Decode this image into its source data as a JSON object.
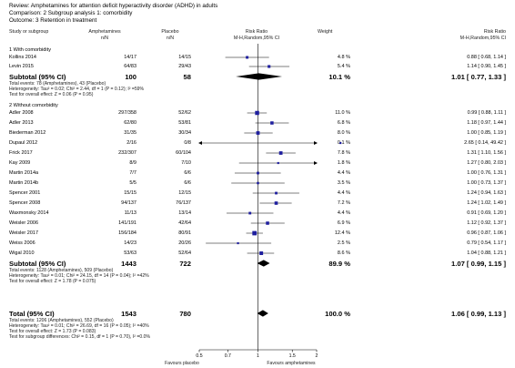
{
  "header": {
    "review": "Review:   Amphetamines for attention deficit hyperactivity disorder (ADHD) in adults",
    "comparison": "Comparison:   2 Subgroup analysis 1: comorbidity",
    "outcome": "Outcome:   3 Retention in treatment"
  },
  "columns": {
    "study": "Study or subgroup",
    "amph": "Amphetamines",
    "amph_sub": "n/N",
    "placebo": "Placebo",
    "placebo_sub": "n/N",
    "rr": "Risk Ratio",
    "rr_sub": "M-H,Random,95% CI",
    "weight": "Weight",
    "rr2": "Risk Ratio",
    "rr2_sub": "M-H,Random,95% CI"
  },
  "groups": [
    {
      "title": "1 With comorbidity",
      "rows": [
        {
          "study": "Kollins 2014",
          "amph": "14/17",
          "placebo": "14/15",
          "weight": "4.8 %",
          "ci_text": "0.88 [ 0.68, 1.14 ]",
          "rr": 0.88,
          "lo": 0.68,
          "hi": 1.14
        },
        {
          "study": "Levin 2015",
          "amph": "64/83",
          "placebo": "29/43",
          "weight": "5.4 %",
          "ci_text": "1.14 [ 0.90, 1.45 ]",
          "rr": 1.14,
          "lo": 0.9,
          "hi": 1.45
        }
      ],
      "subtotal": {
        "label": "Subtotal (95% CI)",
        "amph": "100",
        "placebo": "58",
        "weight": "10.1 %",
        "ci_text": "1.01 [ 0.77, 1.33 ]",
        "rr": 1.01,
        "lo": 0.77,
        "hi": 1.33
      },
      "notes": [
        "Total events: 78 (Amphetamines), 43 (Placebo)",
        "Heterogeneity: Tau² = 0.02; Chi² = 2.44, df = 1 (P = 0.12); I² =59%",
        "Test for overall effect: Z = 0.06 (P = 0.95)"
      ]
    },
    {
      "title": "2 Without comorbidity",
      "rows": [
        {
          "study": "Adler 2008",
          "amph": "297/358",
          "placebo": "52/62",
          "weight": "11.0 %",
          "ci_text": "0.99 [ 0.88, 1.11 ]",
          "rr": 0.99,
          "lo": 0.88,
          "hi": 1.11
        },
        {
          "study": "Adler 2013",
          "amph": "62/80",
          "placebo": "53/81",
          "weight": "6.8 %",
          "ci_text": "1.18 [ 0.97, 1.44 ]",
          "rr": 1.18,
          "lo": 0.97,
          "hi": 1.44
        },
        {
          "study": "Biederman 2012",
          "amph": "31/35",
          "placebo": "30/34",
          "weight": "8.0 %",
          "ci_text": "1.00 [ 0.85, 1.19 ]",
          "rr": 1.0,
          "lo": 0.85,
          "hi": 1.19
        },
        {
          "study": "Dupaul 2012",
          "amph": "2/16",
          "placebo": "0/8",
          "weight": "0.1 %",
          "ci_text": "2.65 [ 0.14, 49.42 ]",
          "rr": 2.65,
          "lo": 0.14,
          "hi": 49.42
        },
        {
          "study": "Frick 2017",
          "amph": "232/307",
          "placebo": "60/104",
          "weight": "7.8 %",
          "ci_text": "1.31 [ 1.10, 1.56 ]",
          "rr": 1.31,
          "lo": 1.1,
          "hi": 1.56
        },
        {
          "study": "Kay 2009",
          "amph": "8/9",
          "placebo": "7/10",
          "weight": "1.8 %",
          "ci_text": "1.27 [ 0.80, 2.03 ]",
          "rr": 1.27,
          "lo": 0.8,
          "hi": 2.03
        },
        {
          "study": "Martin 2014a",
          "amph": "7/7",
          "placebo": "6/6",
          "weight": "4.4 %",
          "ci_text": "1.00 [ 0.76, 1.31 ]",
          "rr": 1.0,
          "lo": 0.76,
          "hi": 1.31
        },
        {
          "study": "Martin 2014b",
          "amph": "5/5",
          "placebo": "6/6",
          "weight": "3.5 %",
          "ci_text": "1.00 [ 0.73, 1.37 ]",
          "rr": 1.0,
          "lo": 0.73,
          "hi": 1.37
        },
        {
          "study": "Spencer 2001",
          "amph": "15/15",
          "placebo": "12/15",
          "weight": "4.4 %",
          "ci_text": "1.24 [ 0.94, 1.63 ]",
          "rr": 1.24,
          "lo": 0.94,
          "hi": 1.63
        },
        {
          "study": "Spencer 2008",
          "amph": "94/137",
          "placebo": "76/137",
          "weight": "7.2 %",
          "ci_text": "1.24 [ 1.02, 1.49 ]",
          "rr": 1.24,
          "lo": 1.02,
          "hi": 1.49
        },
        {
          "study": "Waxmonsky 2014",
          "amph": "11/13",
          "placebo": "13/14",
          "weight": "4.4 %",
          "ci_text": "0.91 [ 0.69, 1.20 ]",
          "rr": 0.91,
          "lo": 0.69,
          "hi": 1.2
        },
        {
          "study": "Weisler 2006",
          "amph": "141/191",
          "placebo": "42/64",
          "weight": "6.9 %",
          "ci_text": "1.12 [ 0.92, 1.37 ]",
          "rr": 1.12,
          "lo": 0.92,
          "hi": 1.37
        },
        {
          "study": "Weisler 2017",
          "amph": "156/184",
          "placebo": "80/91",
          "weight": "12.4 %",
          "ci_text": "0.96 [ 0.87, 1.06 ]",
          "rr": 0.96,
          "lo": 0.87,
          "hi": 1.06
        },
        {
          "study": "Weiss 2006",
          "amph": "14/23",
          "placebo": "20/26",
          "weight": "2.5 %",
          "ci_text": "0.79 [ 0.54, 1.17 ]",
          "rr": 0.79,
          "lo": 0.54,
          "hi": 1.17
        },
        {
          "study": "Wigal 2010",
          "amph": "53/63",
          "placebo": "52/64",
          "weight": "8.6 %",
          "ci_text": "1.04 [ 0.88, 1.21 ]",
          "rr": 1.04,
          "lo": 0.88,
          "hi": 1.21
        }
      ],
      "subtotal": {
        "label": "Subtotal (95% CI)",
        "amph": "1443",
        "placebo": "722",
        "weight": "89.9 %",
        "ci_text": "1.07 [ 0.99, 1.15 ]",
        "rr": 1.07,
        "lo": 0.99,
        "hi": 1.15
      },
      "notes": [
        "Total events: 1128 (Amphetamines), 509 (Placebo)",
        "Heterogeneity: Tau² = 0.01; Chi² = 24.15, df = 14 (P = 0.04); I² =42%",
        "Test for overall effect: Z = 1.78 (P = 0.075)"
      ]
    }
  ],
  "total": {
    "label": "Total (95% CI)",
    "amph": "1543",
    "placebo": "780",
    "weight": "100.0 %",
    "ci_text": "1.06 [ 0.99, 1.13 ]",
    "rr": 1.06,
    "lo": 0.99,
    "hi": 1.13,
    "notes": [
      "Total events: 1206 (Amphetamines), 552 (Placebo)",
      "Heterogeneity: Tau² = 0.01; Chi² = 26.69, df = 16 (P = 0.05); I² =40%",
      "Test for overall effect: Z = 1.73 (P = 0.083)",
      "Test for subgroup differences: Chi² = 0.15, df = 1 (P = 0.70), I² =0.0%"
    ]
  },
  "axis": {
    "ticks": [
      0.5,
      0.7,
      1,
      1.5,
      2
    ],
    "tick_labels": [
      "0.5",
      "0.7",
      "1",
      "1.5",
      "2"
    ],
    "left_label": "Favours placebo",
    "right_label": "Favours amphetamines",
    "scale": "log",
    "range": [
      0.5,
      2
    ]
  },
  "colors": {
    "marker": "#1f1f9f",
    "diamond": "#000000"
  }
}
